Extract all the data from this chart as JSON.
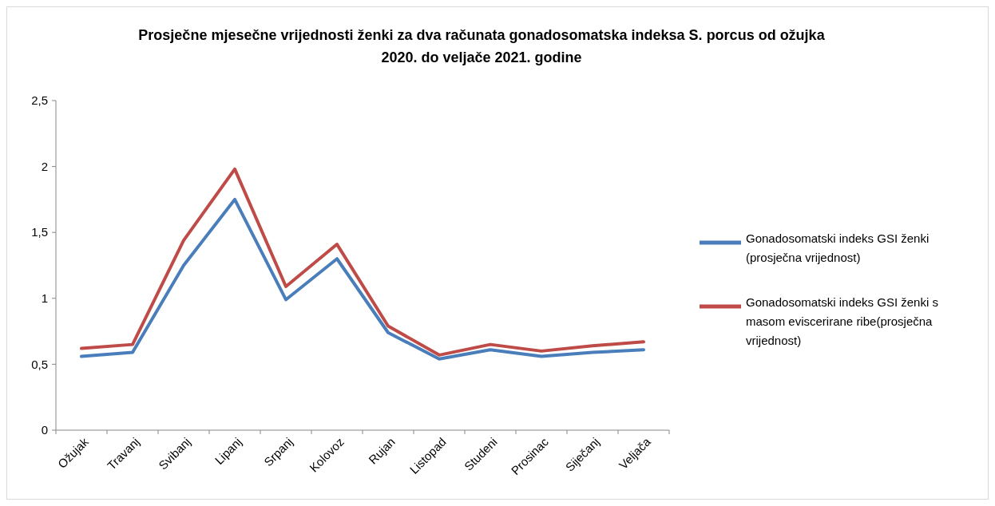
{
  "chart_data": {
    "type": "line",
    "title": "Prosječne mjesečne vrijednosti ženki za dva računata gonadosomatska indeksa S. porcus od ožujka 2020. do veljače 2021. godine",
    "categories": [
      "Ožujak",
      "Travanj",
      "Svibanj",
      "Lipanj",
      "Srpanj",
      "Kolovoz",
      "Rujan",
      "Listopad",
      "Studeni",
      "Prosinac",
      "Siječanj",
      "Veljača"
    ],
    "series": [
      {
        "name": "Gonadosomatski indeks GSI ženki (prosječna vrijednost)",
        "color": "#4a7ebb",
        "values": [
          0.56,
          0.59,
          1.25,
          1.75,
          0.99,
          1.3,
          0.74,
          0.54,
          0.61,
          0.56,
          0.59,
          0.61
        ]
      },
      {
        "name": "Gonadosomatski indeks GSI ženki s masom eviscerirane ribe(prosječna vrijednost)",
        "color": "#be4b48",
        "values": [
          0.62,
          0.65,
          1.44,
          1.98,
          1.09,
          1.41,
          0.79,
          0.57,
          0.65,
          0.6,
          0.64,
          0.67
        ]
      }
    ],
    "ylim": [
      0,
      2.5
    ],
    "yticks": [
      0,
      {
        "value": 0.5,
        "label": "0,5"
      },
      1,
      {
        "value": 1.5,
        "label": "1,5"
      },
      2,
      {
        "value": 2.5,
        "label": "2,5"
      }
    ],
    "grid": false,
    "legend": "right"
  }
}
